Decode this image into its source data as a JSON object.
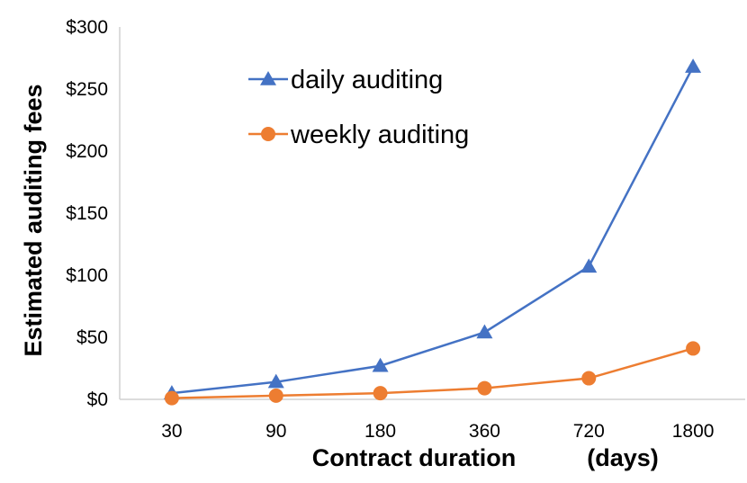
{
  "chart_data": {
    "type": "line",
    "categories": [
      "30",
      "90",
      "180",
      "360",
      "720",
      "1800"
    ],
    "y_tick_labels": [
      "$0",
      "$50",
      "$100",
      "$150",
      "$200",
      "$250",
      "$300"
    ],
    "ylim": [
      0,
      300
    ],
    "ylabel": "Estimated auditing fees",
    "xlabel": "Contract duration",
    "xlabel_unit": "(days)",
    "grid": false,
    "legend_position": "top-left",
    "series": [
      {
        "name": "daily auditing",
        "color": "#4472C4",
        "marker": "triangle",
        "values": [
          5,
          14,
          27,
          54,
          107,
          268
        ]
      },
      {
        "name": "weekly auditing",
        "color": "#ED7D31",
        "marker": "circle",
        "values": [
          1,
          3,
          5,
          9,
          17,
          41
        ]
      }
    ]
  }
}
